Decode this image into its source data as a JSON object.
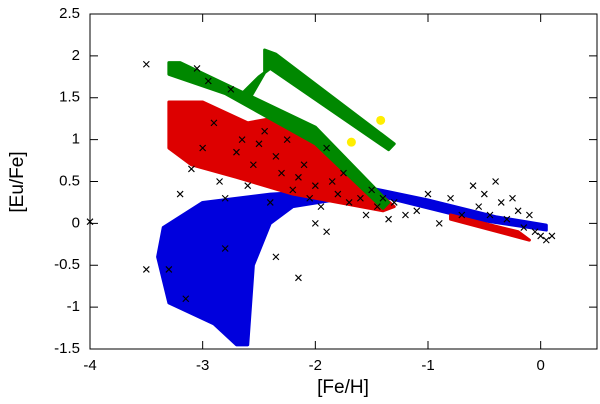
{
  "chart_data": {
    "type": "scatter",
    "xlabel": "[Fe/H]",
    "ylabel": "[Eu/Fe]",
    "xlim": [
      -4,
      0.5
    ],
    "xticks": [
      -4,
      -3,
      -2,
      -1,
      0
    ],
    "ylim": [
      -1.5,
      2.5
    ],
    "yticks": [
      -1.5,
      -1,
      -0.5,
      0,
      0.5,
      1,
      1.5,
      2,
      2.5
    ],
    "regions": [
      {
        "color": "#0000dd",
        "x": [
          -3.35,
          -3.0,
          -2.4,
          -1.5,
          -1.0,
          -0.4,
          0.05,
          0.05,
          -0.6,
          -1.5,
          -2.2,
          -2.4,
          -2.55,
          -2.6,
          -2.7,
          -2.9,
          -3.3,
          -3.4
        ],
        "y": [
          -0.05,
          0.25,
          0.35,
          0.42,
          0.28,
          0.08,
          -0.02,
          -0.08,
          0.05,
          0.35,
          0.2,
          0.0,
          -0.5,
          -1.45,
          -1.45,
          -1.2,
          -0.95,
          -0.4
        ]
      },
      {
        "color": "#dd0000",
        "x": [
          -3.3,
          -3.0,
          -2.6,
          -2.4,
          -1.8,
          -1.3,
          -1.4,
          -2.2,
          -2.7,
          -3.1,
          -3.3
        ],
        "y": [
          1.45,
          1.45,
          1.2,
          1.25,
          0.8,
          0.2,
          0.15,
          0.35,
          0.55,
          0.7,
          0.9
        ]
      },
      {
        "color": "#dd0000",
        "x": [
          -0.8,
          -0.2,
          -0.1,
          -0.8
        ],
        "y": [
          0.1,
          -0.1,
          -0.2,
          0.05
        ]
      },
      {
        "color": "#008800",
        "x": [
          -3.3,
          -3.2,
          -2.0,
          -1.35,
          -1.4,
          -2.0,
          -2.8,
          -3.3
        ],
        "y": [
          1.92,
          1.92,
          1.15,
          0.25,
          0.18,
          0.95,
          1.55,
          1.78
        ]
      },
      {
        "color": "#008800",
        "x": [
          -2.45,
          -2.35,
          -1.3,
          -1.35,
          -2.4,
          -2.5,
          -2.65,
          -2.6,
          -2.45
        ],
        "y": [
          2.07,
          2.02,
          0.95,
          0.88,
          1.85,
          1.75,
          1.55,
          1.45,
          1.8
        ]
      }
    ],
    "series": [
      {
        "color": "#000000",
        "marker": "x",
        "x": [
          -4,
          -3.5,
          -3.3,
          -3.2,
          -3.1,
          -3.05,
          -3,
          -2.95,
          -2.9,
          -2.85,
          -2.8,
          -2.75,
          -2.7,
          -2.65,
          -2.6,
          -2.55,
          -2.5,
          -2.45,
          -2.4,
          -2.35,
          -2.3,
          -2.25,
          -2.2,
          -2.15,
          -2.1,
          -2.05,
          -2,
          -1.95,
          -1.9,
          -1.85,
          -1.8,
          -1.75,
          -1.7,
          -1.6,
          -1.55,
          -1.5,
          -1.45,
          -1.4,
          -1.35,
          -1.3,
          -1.2,
          -1.1,
          -1.0,
          -0.9,
          -0.8,
          -0.7,
          -0.6,
          -0.55,
          -0.5,
          -0.45,
          -0.4,
          -0.35,
          -0.3,
          -0.25,
          -0.2,
          -0.15,
          -0.1,
          -0.05,
          0,
          0.05,
          0.1,
          -2.15,
          -2.8,
          -3.15,
          -2.0,
          -1.9,
          -3.5,
          -2.35
        ],
        "y": [
          0.02,
          1.9,
          -0.55,
          0.35,
          0.65,
          1.85,
          0.9,
          1.7,
          1.2,
          0.5,
          0.3,
          1.6,
          0.85,
          1.0,
          0.45,
          0.7,
          0.95,
          1.1,
          0.25,
          0.8,
          0.6,
          1.0,
          0.4,
          0.55,
          0.7,
          0.3,
          0.45,
          0.2,
          0.9,
          0.5,
          0.35,
          0.6,
          0.25,
          0.3,
          0.1,
          0.4,
          0.2,
          0.3,
          0.05,
          0.25,
          0.1,
          0.15,
          0.35,
          0.0,
          0.3,
          0.1,
          0.45,
          0.2,
          0.35,
          0.1,
          0.5,
          0.25,
          0.05,
          0.3,
          0.15,
          -0.05,
          0.1,
          -0.1,
          -0.15,
          -0.2,
          -0.15,
          -0.65,
          -0.3,
          -0.9,
          0.0,
          -0.1,
          -0.55,
          -0.4
        ]
      },
      {
        "color": "#ffee00",
        "marker": "circle",
        "x": [
          -1.68,
          -1.42
        ],
        "y": [
          0.97,
          1.23
        ]
      }
    ]
  }
}
